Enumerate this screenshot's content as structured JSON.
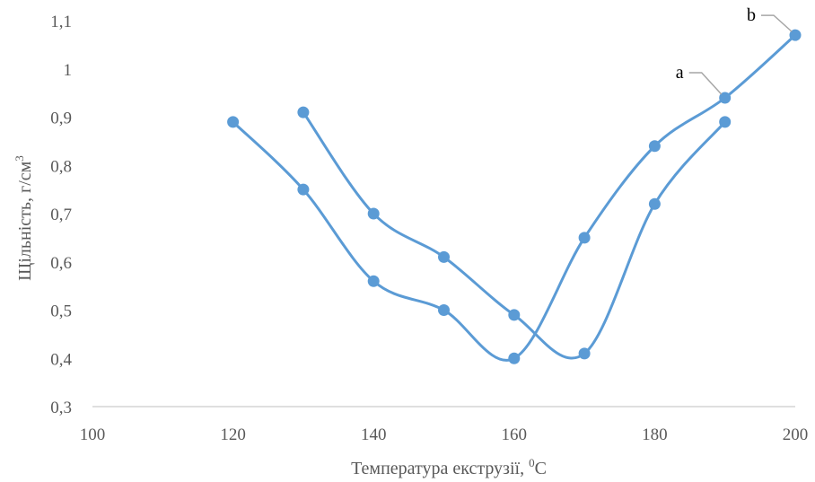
{
  "chart_data": {
    "type": "scatter",
    "xlabel": "Температура  екструзії, ",
    "xlabel_sup": "0",
    "xlabel_unit": "С",
    "ylabel": "Щільність, г/см",
    "ylabel_sup": "3",
    "xlim": [
      100,
      200
    ],
    "ylim": [
      0.3,
      1.1
    ],
    "x_ticks": [
      "100",
      "120",
      "140",
      "160",
      "180",
      "200"
    ],
    "y_ticks": [
      "0,3",
      "0,4",
      "0,5",
      "0,6",
      "0,7",
      "0,8",
      "0,9",
      "1",
      "1,1"
    ],
    "grid": false,
    "smooth_lines": true,
    "series": [
      {
        "name": "a",
        "x": [
          130,
          140,
          150,
          160,
          170,
          180,
          190
        ],
        "y": [
          0.91,
          0.7,
          0.61,
          0.49,
          0.41,
          0.72,
          0.89
        ]
      },
      {
        "name": "b",
        "x": [
          120,
          130,
          140,
          150,
          160,
          170,
          180,
          190,
          200
        ],
        "y": [
          0.89,
          0.75,
          0.56,
          0.5,
          0.4,
          0.65,
          0.84,
          0.94,
          1.07
        ]
      }
    ],
    "annotations": [
      {
        "text": "a",
        "series": 1,
        "point": 7
      },
      {
        "text": "b",
        "series": 1,
        "point": 8
      }
    ],
    "colors": {
      "series": "#5b9bd5",
      "axis": "#bfbfbf",
      "text": "#595959",
      "leader": "#a6a6a6"
    }
  }
}
